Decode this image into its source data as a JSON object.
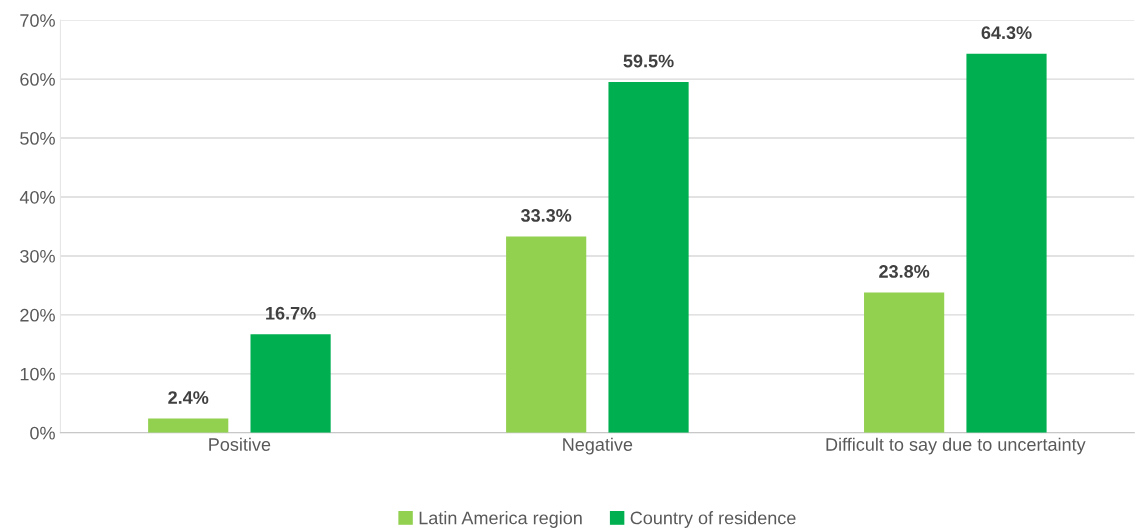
{
  "chart_data": {
    "type": "bar",
    "categories": [
      "Positive",
      "Negative",
      "Difficult to say due to uncertainty"
    ],
    "series": [
      {
        "name": "Latin America region",
        "color": "#92d050",
        "values": [
          2.4,
          33.3,
          23.8
        ],
        "value_labels": [
          "2.4%",
          "33.3%",
          "23.8%"
        ]
      },
      {
        "name": "Country of residence",
        "color": "#00b050",
        "values": [
          16.7,
          59.5,
          64.3
        ],
        "value_labels": [
          "16.7%",
          "59.5%",
          "64.3%"
        ]
      }
    ],
    "ylim": [
      0,
      70
    ],
    "yticks": [
      {
        "value": 0,
        "label": "0%"
      },
      {
        "value": 10,
        "label": "10%"
      },
      {
        "value": 20,
        "label": "20%"
      },
      {
        "value": 30,
        "label": "30%"
      },
      {
        "value": 40,
        "label": "40%"
      },
      {
        "value": 50,
        "label": "50%"
      },
      {
        "value": 60,
        "label": "60%"
      },
      {
        "value": 70,
        "label": "70%"
      }
    ],
    "grid": "y",
    "legend": "bottom"
  }
}
